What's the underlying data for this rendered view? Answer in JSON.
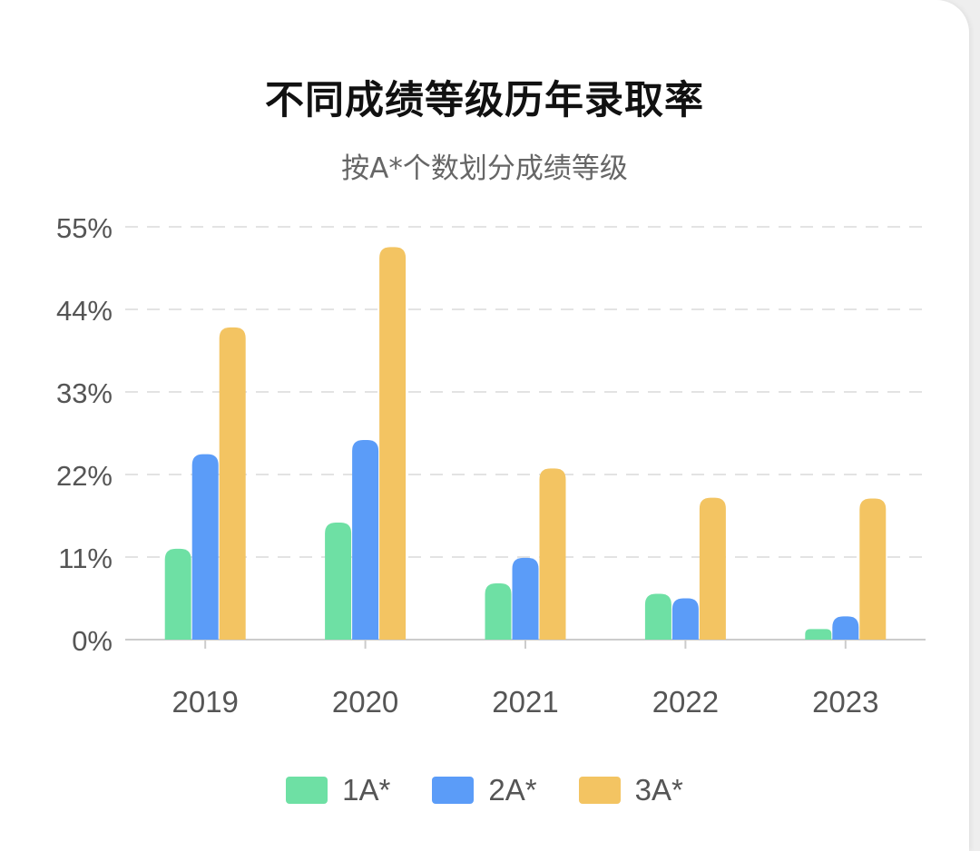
{
  "chart_data": {
    "type": "bar",
    "title": "不同成绩等级历年录取率",
    "subtitle": "按A*个数划分成绩等级",
    "categories": [
      "2019",
      "2020",
      "2021",
      "2022",
      "2023"
    ],
    "series": [
      {
        "name": "1A*",
        "color": "#6ee0a4",
        "values": [
          12.1,
          15.6,
          7.5,
          6.1,
          1.4
        ]
      },
      {
        "name": "2A*",
        "color": "#5b9cf8",
        "values": [
          24.7,
          26.6,
          10.9,
          5.5,
          3.1
        ]
      },
      {
        "name": "3A*",
        "color": "#f3c462",
        "values": [
          41.6,
          52.3,
          22.8,
          18.9,
          18.8
        ]
      }
    ],
    "yticks": [
      "0%",
      "11%",
      "22%",
      "33%",
      "44%",
      "55%"
    ],
    "ylim": [
      0,
      55
    ],
    "grid": true,
    "legend_position": "bottom"
  }
}
